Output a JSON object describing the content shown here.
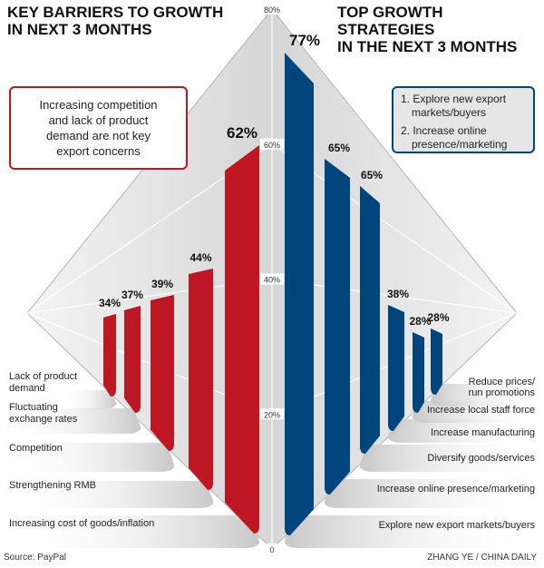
{
  "chart_data": [
    {
      "type": "bar",
      "title": "KEY BARRIERS TO GROWTH IN NEXT 3 MONTHS",
      "categories": [
        "Lack of product demand",
        "Fluctuating exchange rates",
        "Competition",
        "Strengthening RMB",
        "Increasing cost of goods/inflation"
      ],
      "values": [
        34,
        37,
        39,
        44,
        62
      ],
      "value_labels": [
        "34%",
        "37%",
        "39%",
        "44%",
        "62%"
      ],
      "color": "#be1622",
      "annotation": "Increasing competition and lack of product demand are not key export concerns"
    },
    {
      "type": "bar",
      "title": "TOP GROWTH STRATEGIES IN THE NEXT 3 MONTHS",
      "categories": [
        "Explore new export markets/buyers",
        "Increase online presence/marketing",
        "Diversify goods/services",
        "Increase manufacturing",
        "Increase local staff force",
        "Reduce prices/ run promotions"
      ],
      "values": [
        77,
        65,
        65,
        38,
        28,
        28
      ],
      "value_labels": [
        "77%",
        "65%",
        "65%",
        "38%",
        "28%",
        "28%"
      ],
      "color": "#00457c",
      "annotation": [
        "1. Explore new export markets/buyers",
        "2. Increase online presence/marketing"
      ]
    }
  ],
  "axis": {
    "ylim": [
      0,
      80
    ],
    "ticks": [
      "0",
      "20%",
      "40%",
      "60%",
      "80%"
    ]
  },
  "left_title": [
    "KEY BARRIERS TO GROWTH",
    "IN NEXT 3 MONTHS"
  ],
  "right_title": [
    "TOP GROWTH STRATEGIES",
    "IN THE NEXT 3 MONTHS"
  ],
  "source": "Source: PayPal",
  "credit": "ZHANG YE / CHINA DAILY"
}
